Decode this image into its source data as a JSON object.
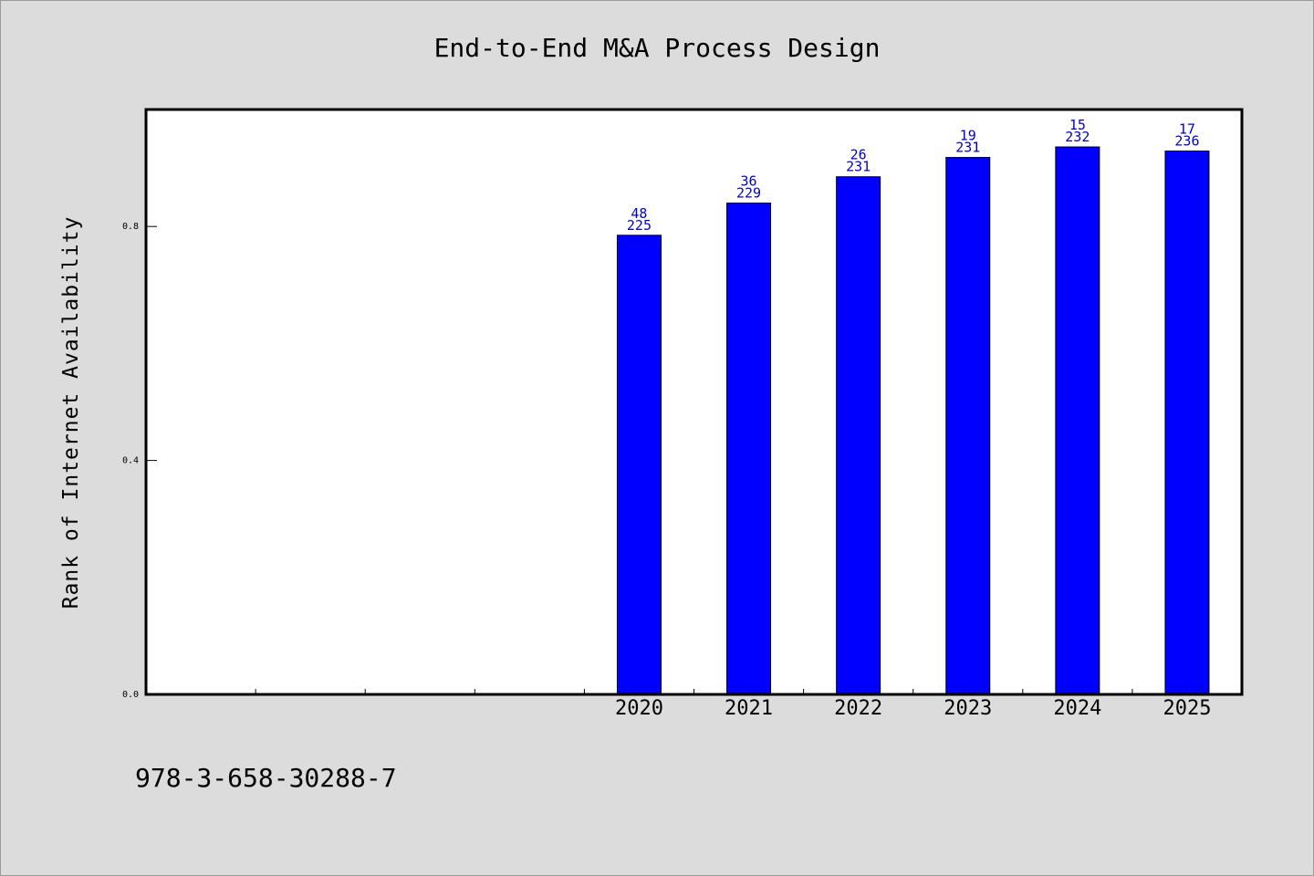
{
  "chart_data": {
    "type": "bar",
    "title": "End-to-End M&A Process Design",
    "xlabel": "",
    "ylabel": "Rank of Internet Availability",
    "categories": [
      "",
      "",
      "",
      "",
      "2020",
      "2021",
      "2022",
      "2023",
      "2024",
      "2025"
    ],
    "values": [
      null,
      null,
      null,
      null,
      0.785,
      0.84,
      0.885,
      0.918,
      0.936,
      0.929
    ],
    "data_labels": [
      null,
      null,
      null,
      null,
      [
        "48",
        "225"
      ],
      [
        "36",
        "229"
      ],
      [
        "26",
        "231"
      ],
      [
        "19",
        "231"
      ],
      [
        "15",
        "232"
      ],
      [
        "17",
        "236"
      ]
    ],
    "y_ticks": [
      "0.0",
      "0.4",
      "0.8"
    ],
    "ylim": [
      0,
      1.0
    ],
    "grid": false,
    "legend": "none",
    "bar_color": "#0000ff",
    "label_color": "#0000cc",
    "background_color": "#dcdcdc",
    "plot_background": "#ffffff"
  },
  "footer": {
    "isbn": "978-3-658-30288-7"
  }
}
